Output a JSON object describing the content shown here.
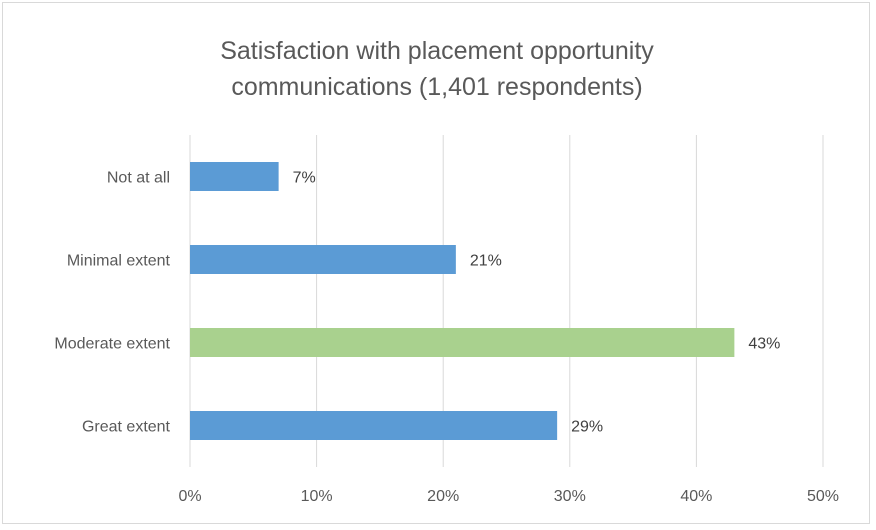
{
  "chart_data": {
    "type": "bar",
    "orientation": "horizontal",
    "title_lines": [
      "Satisfaction with placement opportunity",
      "communications (1,401 respondents)"
    ],
    "categories": [
      "Not at all",
      "Minimal extent",
      "Moderate extent",
      "Great extent"
    ],
    "values": [
      7,
      21,
      43,
      29
    ],
    "data_labels": [
      "7%",
      "21%",
      "43%",
      "29%"
    ],
    "xlim": [
      0,
      50
    ],
    "x_ticks": [
      0,
      10,
      20,
      30,
      40,
      50
    ],
    "x_tick_labels": [
      "0%",
      "10%",
      "20%",
      "30%",
      "40%",
      "50%"
    ],
    "grid": true,
    "colors": [
      "#5b9bd5",
      "#5b9bd5",
      "#a9d18e",
      "#5b9bd5"
    ],
    "grid_color": "#d9d9d9"
  }
}
